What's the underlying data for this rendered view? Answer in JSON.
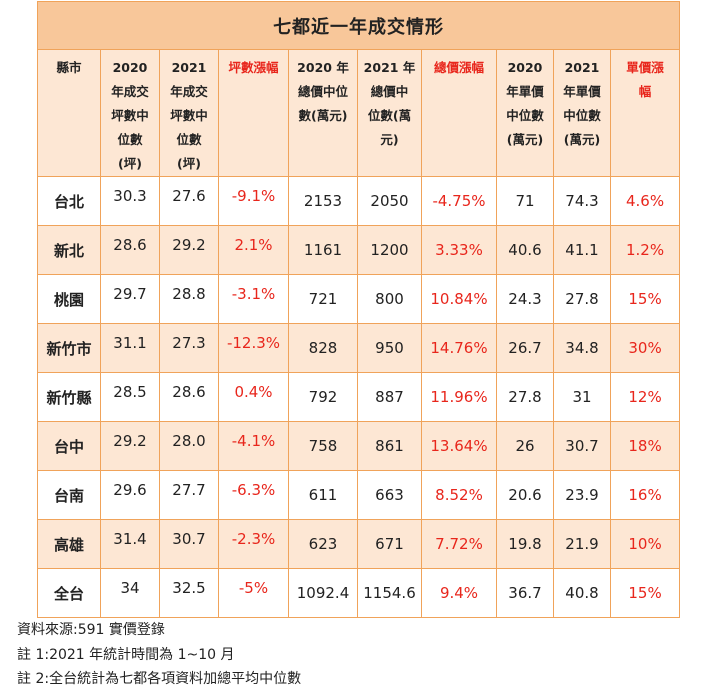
{
  "title": "七都近一年成交情形",
  "headers": [
    {
      "lines": [
        "縣市"
      ],
      "red": false
    },
    {
      "lines": [
        "2020",
        "年成交",
        "坪數中",
        "位數",
        "(坪)"
      ],
      "red": false
    },
    {
      "lines": [
        "2021",
        "年成交",
        "坪數中",
        "位數",
        "(坪)"
      ],
      "red": false
    },
    {
      "lines": [
        "坪數漲幅"
      ],
      "red": true
    },
    {
      "lines": [
        "2020 年",
        "總價中位",
        "數(萬元)"
      ],
      "red": false
    },
    {
      "lines": [
        "2021 年",
        "總價中",
        "位數(萬",
        "元)"
      ],
      "red": false
    },
    {
      "lines": [
        "總價漲幅"
      ],
      "red": true
    },
    {
      "lines": [
        "2020",
        "年單價",
        "中位數",
        "(萬元)"
      ],
      "red": false
    },
    {
      "lines": [
        "2021",
        "年單價",
        "中位數",
        "(萬元)"
      ],
      "red": false
    },
    {
      "lines": [
        "單價漲",
        "幅"
      ],
      "red": true
    }
  ],
  "rows": [
    {
      "city": "台北",
      "area2020": "30.3",
      "area2021": "27.6",
      "area_change": "-9.1%",
      "total2020": "2153",
      "total2021": "2050",
      "total_change": "-4.75%",
      "unit2020": "71",
      "unit2021": "74.3",
      "unit_change": "4.6%"
    },
    {
      "city": "新北",
      "area2020": "28.6",
      "area2021": "29.2",
      "area_change": "2.1%",
      "total2020": "1161",
      "total2021": "1200",
      "total_change": "3.33%",
      "unit2020": "40.6",
      "unit2021": "41.1",
      "unit_change": "1.2%"
    },
    {
      "city": "桃園",
      "area2020": "29.7",
      "area2021": "28.8",
      "area_change": "-3.1%",
      "total2020": "721",
      "total2021": "800",
      "total_change": "10.84%",
      "unit2020": "24.3",
      "unit2021": "27.8",
      "unit_change": "15%"
    },
    {
      "city": "新竹市",
      "area2020": "31.1",
      "area2021": "27.3",
      "area_change": "-12.3%",
      "total2020": "828",
      "total2021": "950",
      "total_change": "14.76%",
      "unit2020": "26.7",
      "unit2021": "34.8",
      "unit_change": "30%"
    },
    {
      "city": "新竹縣",
      "area2020": "28.5",
      "area2021": "28.6",
      "area_change": "0.4%",
      "total2020": "792",
      "total2021": "887",
      "total_change": "11.96%",
      "unit2020": "27.8",
      "unit2021": "31",
      "unit_change": "12%"
    },
    {
      "city": "台中",
      "area2020": "29.2",
      "area2021": "28.0",
      "area_change": "-4.1%",
      "total2020": "758",
      "total2021": "861",
      "total_change": "13.64%",
      "unit2020": "26",
      "unit2021": "30.7",
      "unit_change": "18%"
    },
    {
      "city": "台南",
      "area2020": "29.6",
      "area2021": "27.7",
      "area_change": "-6.3%",
      "total2020": "611",
      "total2021": "663",
      "total_change": "8.52%",
      "unit2020": "20.6",
      "unit2021": "23.9",
      "unit_change": "16%"
    },
    {
      "city": "高雄",
      "area2020": "31.4",
      "area2021": "30.7",
      "area_change": "-2.3%",
      "total2020": "623",
      "total2021": "671",
      "total_change": "7.72%",
      "unit2020": "19.8",
      "unit2021": "21.9",
      "unit_change": "10%"
    },
    {
      "city": "全台",
      "area2020": "34",
      "area2021": "32.5",
      "area_change": "-5%",
      "total2020": "1092.4",
      "total2021": "1154.6",
      "total_change": "9.4%",
      "unit2020": "36.7",
      "unit2021": "40.8",
      "unit_change": "15%"
    }
  ],
  "notes": [
    "資料來源:591 實價登錄",
    "註 1:2021 年統計時間為 1~10 月",
    "註 2:全台統計為七都各項資料加總平均中位數"
  ],
  "colors": {
    "border": "#f0a35a",
    "title_bg": "#f8c79a",
    "band_bg": "#fde7d4",
    "accent_red": "#e8261c"
  }
}
